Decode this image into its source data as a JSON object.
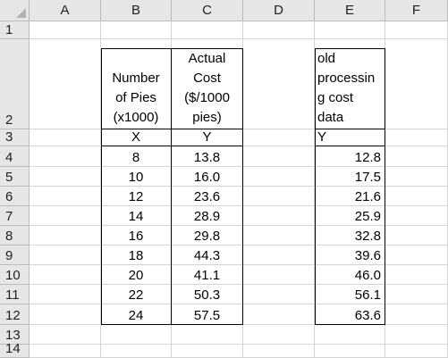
{
  "columns": [
    "A",
    "B",
    "C",
    "D",
    "E",
    "F"
  ],
  "rows": [
    "1",
    "2",
    "3",
    "4",
    "5",
    "6",
    "7",
    "8",
    "9",
    "10",
    "11",
    "12",
    "13",
    "14"
  ],
  "cells": {
    "B2": "Number\nof Pies\n(x1000)",
    "C2": "Actual\nCost\n($/1000\npies)",
    "E2": "old\nprocessin\ng cost\ndata",
    "B3": "X",
    "C3": "Y",
    "E3": "Y",
    "B4": "8",
    "C4": "13.8",
    "E4": "12.8",
    "B5": "10",
    "C5": "16.0",
    "E5": "17.5",
    "B6": "12",
    "C6": "23.6",
    "E6": "21.6",
    "B7": "14",
    "C7": "28.9",
    "E7": "25.9",
    "B8": "16",
    "C8": "29.8",
    "E8": "32.8",
    "B9": "18",
    "C9": "44.3",
    "E9": "39.6",
    "B10": "20",
    "C10": "41.1",
    "E10": "46.0",
    "B11": "22",
    "C11": "50.3",
    "E11": "56.1",
    "B12": "24",
    "C12": "57.5",
    "E12": "63.6"
  },
  "colors": {
    "header_bg": "#e6e6e6",
    "gridline": "#d4d4d4",
    "table_border": "#000000"
  }
}
